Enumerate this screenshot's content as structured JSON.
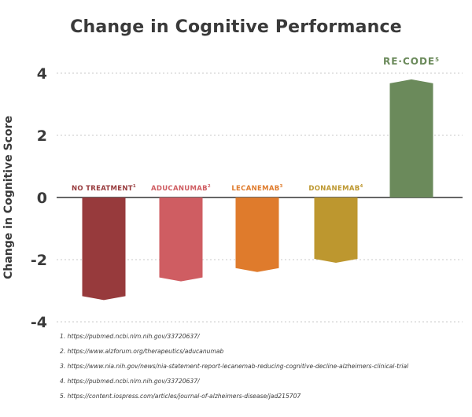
{
  "title": "Change in Cognitive Performance",
  "chart_data": {
    "type": "bar",
    "title": "Change in Cognitive Performance",
    "xlabel": "",
    "ylabel": "Change in Cognitive Score",
    "ylim": [
      -4,
      4
    ],
    "yticks": [
      "4",
      "2",
      "0",
      "-2",
      "-4"
    ],
    "grid": "dashed horizontal gridlines",
    "categories": [
      {
        "label": "NO TREATMENT",
        "sup": "1",
        "value": -3.3,
        "color": "#973a3c"
      },
      {
        "label": "ADUCANUMAB",
        "sup": "2",
        "value": -2.7,
        "color": "#cf5d62"
      },
      {
        "label": "LECANEMAB",
        "sup": "3",
        "value": -2.4,
        "color": "#df7b2c"
      },
      {
        "label": "DONANEMAB",
        "sup": "4",
        "value": -2.1,
        "color": "#bd972f"
      },
      {
        "label": "RE·CODE",
        "sup": "5",
        "value": 3.8,
        "color": "#6b8a5b"
      }
    ]
  },
  "references": [
    "1. https://pubmed.ncbi.nlm.nih.gov/33720637/",
    "2. https://www.alzforum.org/therapeutics/aducanumab",
    "3. https://www.nia.nih.gov/news/nia-statement-report-lecanemab-reducing-cognitive-decline-alzheimers-clinical-trial",
    "4. https://pubmed.ncbi.nlm.nih.gov/33720637/",
    "5. https://content.iospress.com/articles/journal-of-alzheimers-disease/jad215707"
  ]
}
